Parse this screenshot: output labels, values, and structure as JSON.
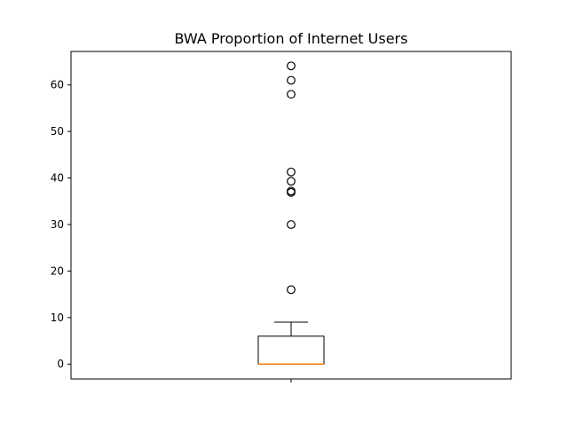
{
  "chart_data": {
    "type": "box",
    "title": "BWA Proportion of Internet Users",
    "xlabel": "",
    "ylabel": "",
    "x_ticks": [
      ""
    ],
    "ylim": [
      -3.2,
      67.2
    ],
    "yticks": [
      0,
      10,
      20,
      30,
      40,
      50,
      60
    ],
    "ytick_labels": [
      "0",
      "10",
      "20",
      "30",
      "40",
      "50",
      "60"
    ],
    "grid": false,
    "legend": "none",
    "box": {
      "whisker_low": 0,
      "q1": 0,
      "median": 0,
      "q3": 6,
      "whisker_high": 9,
      "outliers": [
        64.1,
        61.0,
        58.0,
        41.3,
        39.3,
        37.2,
        36.9,
        30.0,
        16.0
      ]
    },
    "colors": {
      "box": "#000000",
      "median": "#ff7f0e",
      "outlier_edge": "#000000"
    }
  }
}
